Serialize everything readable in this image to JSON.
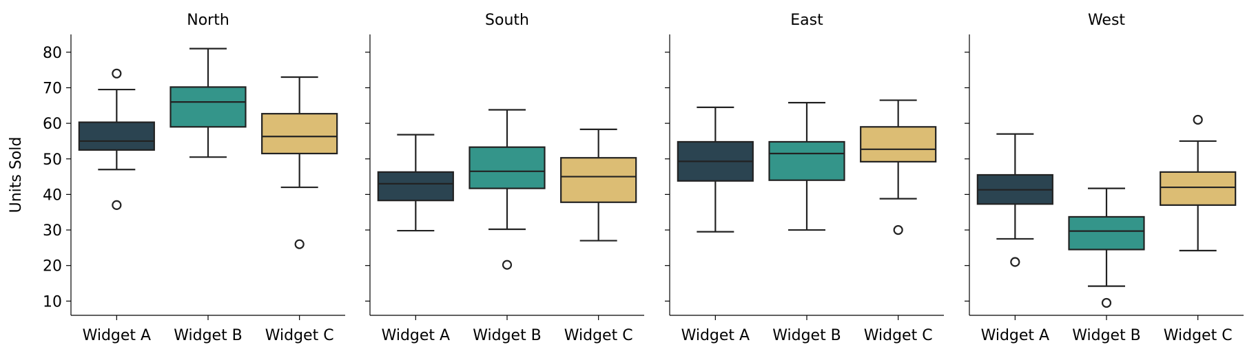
{
  "chart_data": {
    "type": "box",
    "ylabel": "Units Sold",
    "ylim": [
      6,
      85
    ],
    "yticks": [
      10,
      20,
      30,
      40,
      50,
      60,
      70,
      80
    ],
    "categories": [
      "Widget A",
      "Widget B",
      "Widget C"
    ],
    "colors": {
      "Widget A": "#2b4451",
      "Widget B": "#34958a",
      "Widget C": "#dcbd74"
    },
    "grid": false,
    "panels": [
      {
        "title": "North",
        "boxes": [
          {
            "category": "Widget A",
            "whisker_low": 47,
            "q1": 52.5,
            "median": 55,
            "q3": 60.3,
            "whisker_high": 69.5,
            "outliers": [
              74,
              37
            ]
          },
          {
            "category": "Widget B",
            "whisker_low": 50.5,
            "q1": 59,
            "median": 66,
            "q3": 70.2,
            "whisker_high": 81,
            "outliers": []
          },
          {
            "category": "Widget C",
            "whisker_low": 42,
            "q1": 51.5,
            "median": 56.3,
            "q3": 62.7,
            "whisker_high": 73,
            "outliers": [
              26
            ]
          }
        ]
      },
      {
        "title": "South",
        "boxes": [
          {
            "category": "Widget A",
            "whisker_low": 29.8,
            "q1": 38.3,
            "median": 43,
            "q3": 46.3,
            "whisker_high": 56.8,
            "outliers": []
          },
          {
            "category": "Widget B",
            "whisker_low": 30.2,
            "q1": 41.7,
            "median": 46.5,
            "q3": 53.3,
            "whisker_high": 63.8,
            "outliers": [
              20.2
            ]
          },
          {
            "category": "Widget C",
            "whisker_low": 27,
            "q1": 37.8,
            "median": 45,
            "q3": 50.3,
            "whisker_high": 58.3,
            "outliers": []
          }
        ]
      },
      {
        "title": "East",
        "boxes": [
          {
            "category": "Widget A",
            "whisker_low": 29.5,
            "q1": 43.8,
            "median": 49.3,
            "q3": 54.8,
            "whisker_high": 64.5,
            "outliers": []
          },
          {
            "category": "Widget B",
            "whisker_low": 30,
            "q1": 44,
            "median": 51.5,
            "q3": 54.8,
            "whisker_high": 65.8,
            "outliers": []
          },
          {
            "category": "Widget C",
            "whisker_low": 38.8,
            "q1": 49.2,
            "median": 52.7,
            "q3": 59,
            "whisker_high": 66.5,
            "outliers": [
              30
            ]
          }
        ]
      },
      {
        "title": "West",
        "boxes": [
          {
            "category": "Widget A",
            "whisker_low": 27.5,
            "q1": 37.3,
            "median": 41.3,
            "q3": 45.5,
            "whisker_high": 57,
            "outliers": [
              21
            ]
          },
          {
            "category": "Widget B",
            "whisker_low": 14.2,
            "q1": 24.5,
            "median": 29.7,
            "q3": 33.7,
            "whisker_high": 41.7,
            "outliers": [
              9.5
            ]
          },
          {
            "category": "Widget C",
            "whisker_low": 24.2,
            "q1": 37,
            "median": 42,
            "q3": 46.3,
            "whisker_high": 55,
            "outliers": [
              61
            ]
          }
        ]
      }
    ]
  }
}
